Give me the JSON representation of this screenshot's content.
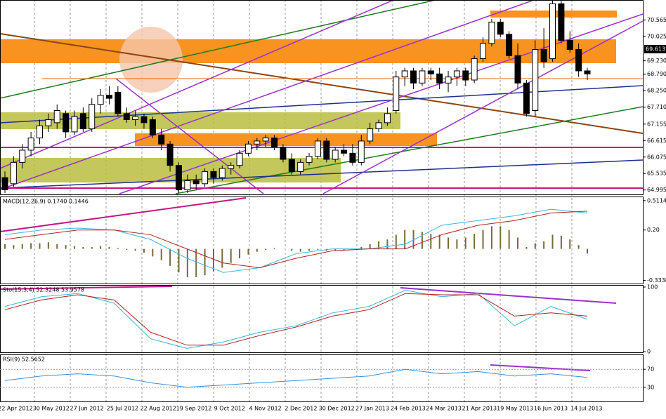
{
  "chart_data": [
    {
      "type": "candlestick",
      "last_price": {
        "value": 69.613,
        "label": "69.613"
      },
      "ylim": [
        64.85,
        71.2
      ],
      "yticks": [
        70.565,
        70.025,
        {
          "value": 69.23,
          "label": "69.230"
        },
        {
          "value": 68.79,
          "label": "68.790"
        },
        {
          "value": 68.25,
          "label": "68.250"
        },
        {
          "value": 67.71,
          "label": "67.710"
        },
        67.155,
        66.615,
        66.075,
        65.535,
        64.995
      ],
      "colors": {
        "up": "#ffffff",
        "down": "#000000"
      },
      "ohlc": [
        [
          65.4,
          65.6,
          64.9,
          65.0
        ],
        [
          65.2,
          66.1,
          65.1,
          65.9
        ],
        [
          65.9,
          66.5,
          65.7,
          66.3
        ],
        [
          66.3,
          66.9,
          66.1,
          66.7
        ],
        [
          66.7,
          67.3,
          66.5,
          67.1
        ],
        [
          67.1,
          67.5,
          66.9,
          67.3
        ],
        [
          67.2,
          67.8,
          67.0,
          67.6
        ],
        [
          67.5,
          67.6,
          66.7,
          66.9
        ],
        [
          66.9,
          67.6,
          66.8,
          67.4
        ],
        [
          67.5,
          67.7,
          66.9,
          67.0
        ],
        [
          67.0,
          68.0,
          66.9,
          67.8
        ],
        [
          67.8,
          68.3,
          67.5,
          68.1
        ],
        [
          68.1,
          68.4,
          67.8,
          68.0
        ],
        [
          68.2,
          68.4,
          67.4,
          67.5
        ],
        [
          67.5,
          67.7,
          67.2,
          67.3
        ],
        [
          67.3,
          67.6,
          67.1,
          67.4
        ],
        [
          67.4,
          67.5,
          67.0,
          67.2
        ],
        [
          67.3,
          67.4,
          66.7,
          66.8
        ],
        [
          66.8,
          67.0,
          66.3,
          66.5
        ],
        [
          66.5,
          66.6,
          65.6,
          65.8
        ],
        [
          65.8,
          65.9,
          64.9,
          65.0
        ],
        [
          65.0,
          65.5,
          64.9,
          65.3
        ],
        [
          65.3,
          65.5,
          65.0,
          65.2
        ],
        [
          65.2,
          65.7,
          65.1,
          65.6
        ],
        [
          65.6,
          65.7,
          65.2,
          65.4
        ],
        [
          65.4,
          65.8,
          65.3,
          65.7
        ],
        [
          65.7,
          65.9,
          65.5,
          65.8
        ],
        [
          65.8,
          66.3,
          65.7,
          66.2
        ],
        [
          66.2,
          66.6,
          66.1,
          66.5
        ],
        [
          66.5,
          66.7,
          66.3,
          66.6
        ],
        [
          66.6,
          66.8,
          66.4,
          66.7
        ],
        [
          66.7,
          66.8,
          66.3,
          66.4
        ],
        [
          66.4,
          66.5,
          65.9,
          66.0
        ],
        [
          66.0,
          66.2,
          65.5,
          65.6
        ],
        [
          65.6,
          66.0,
          65.5,
          65.9
        ],
        [
          65.9,
          66.2,
          65.8,
          66.1
        ],
        [
          66.1,
          66.7,
          66.0,
          66.6
        ],
        [
          66.6,
          66.7,
          65.9,
          66.0
        ],
        [
          66.0,
          66.4,
          65.9,
          66.3
        ],
        [
          66.3,
          66.5,
          66.1,
          66.2
        ],
        [
          66.2,
          66.5,
          65.8,
          65.9
        ],
        [
          65.9,
          66.8,
          65.8,
          66.6
        ],
        [
          66.6,
          67.2,
          66.5,
          67.0
        ],
        [
          67.0,
          67.3,
          66.9,
          67.2
        ],
        [
          67.2,
          67.7,
          67.1,
          67.5
        ],
        [
          67.6,
          68.9,
          67.5,
          68.7
        ],
        [
          68.7,
          69.0,
          68.4,
          68.9
        ],
        [
          68.9,
          69.0,
          68.3,
          68.5
        ],
        [
          68.5,
          69.0,
          68.4,
          68.9
        ],
        [
          68.9,
          69.0,
          68.6,
          68.8
        ],
        [
          68.8,
          69.0,
          68.3,
          68.5
        ],
        [
          68.5,
          68.9,
          68.2,
          68.7
        ],
        [
          68.7,
          69.0,
          68.4,
          68.9
        ],
        [
          68.9,
          69.0,
          68.4,
          68.6
        ],
        [
          68.6,
          69.4,
          68.5,
          69.3
        ],
        [
          69.3,
          70.0,
          69.2,
          69.8
        ],
        [
          69.8,
          70.6,
          69.7,
          70.5
        ],
        [
          70.5,
          70.6,
          70.0,
          70.1
        ],
        [
          70.1,
          70.2,
          69.3,
          69.4
        ],
        [
          69.4,
          69.8,
          68.3,
          68.5
        ],
        [
          68.5,
          68.6,
          67.4,
          67.5
        ],
        [
          67.6,
          69.9,
          67.4,
          69.6
        ],
        [
          69.6,
          70.3,
          69.0,
          69.2
        ],
        [
          69.3,
          71.2,
          69.2,
          71.1
        ],
        [
          71.1,
          71.2,
          69.8,
          69.9
        ],
        [
          69.9,
          70.2,
          69.5,
          69.6
        ],
        [
          69.6,
          69.8,
          68.7,
          68.9
        ],
        [
          68.9,
          69.0,
          68.6,
          68.8
        ]
      ],
      "x_labels": [
        "22 Apr 2012",
        "30 May 2012",
        "27 Jun 2012",
        "25 Jul 2012",
        "22 Aug 2012",
        "19 Sep 2012",
        "9 Oct 2012",
        "4 Nov 2012",
        "2 Dec 2012",
        "30 Dec 2012",
        "27 Jan 2013",
        "24 Feb 2013",
        "24 Mar 2013",
        "21 Apr 2013",
        "19 May 2013",
        "16 Jun 2013",
        "14 Jul 2013"
      ]
    },
    {
      "type": "macd",
      "label": "MACD(12,26,9) 0.1740 0.1446",
      "ylim": [
        -0.36,
        0.54
      ],
      "yticks": [
        0.5114,
        {
          "value": 0.2,
          "label": "0.20"
        },
        -0.3338
      ],
      "histogram": {
        "color": "#7a6a3a",
        "values": [
          0.05,
          0.04,
          0.05,
          0.06,
          0.06,
          0.07,
          0.05,
          0.04,
          0.03,
          0.02,
          0.02,
          0.03,
          0.02,
          0.01,
          -0.01,
          -0.02,
          -0.04,
          -0.08,
          -0.12,
          -0.18,
          -0.25,
          -0.3,
          -0.3,
          -0.28,
          -0.24,
          -0.2,
          -0.15,
          -0.1,
          -0.06,
          -0.03,
          -0.01,
          0.01,
          0.0,
          -0.02,
          -0.03,
          -0.02,
          -0.01,
          -0.02,
          -0.02,
          -0.01,
          0.0,
          0.02,
          0.05,
          0.08,
          0.1,
          0.15,
          0.2,
          0.2,
          0.18,
          0.16,
          0.15,
          0.12,
          0.1,
          0.12,
          0.16,
          0.2,
          0.24,
          0.24,
          0.2,
          0.12,
          0.02,
          0.06,
          0.08,
          0.15,
          0.14,
          0.1,
          0.04,
          -0.05
        ]
      },
      "series": [
        {
          "color": "#3bb6d8",
          "values": [
            0.15,
            0.2,
            0.22,
            0.2,
            0.1,
            -0.1,
            -0.25,
            -0.2,
            -0.05,
            0.0,
            0.0,
            0.05,
            0.25,
            0.3,
            0.35,
            0.42,
            0.38
          ]
        },
        {
          "color": "#b22222",
          "values": [
            0.1,
            0.15,
            0.2,
            0.2,
            0.15,
            0.0,
            -0.15,
            -0.2,
            -0.1,
            -0.02,
            0.0,
            0.0,
            0.15,
            0.25,
            0.3,
            0.38,
            0.4
          ]
        }
      ]
    },
    {
      "type": "stochastic",
      "label": "Sto(15,3,4) 52.3248 53.9578",
      "ylim": [
        0,
        100
      ],
      "yticks": [
        100,
        0
      ],
      "series": [
        {
          "color": "#3bb6d8",
          "values": [
            70,
            85,
            90,
            75,
            20,
            5,
            15,
            30,
            40,
            60,
            70,
            95,
            85,
            90,
            40,
            70,
            50
          ]
        },
        {
          "color": "#b22222",
          "values": [
            65,
            80,
            88,
            80,
            30,
            10,
            10,
            25,
            38,
            55,
            65,
            90,
            88,
            88,
            55,
            60,
            55
          ]
        }
      ]
    },
    {
      "type": "rsi",
      "label": "RSI(9) 52.5652",
      "ylim": [
        0,
        100
      ],
      "yticks": [
        70,
        30
      ],
      "series": [
        {
          "color": "#3b8fd8",
          "values": [
            45,
            55,
            60,
            55,
            40,
            30,
            35,
            40,
            45,
            50,
            55,
            70,
            60,
            65,
            55,
            60,
            52
          ]
        }
      ]
    }
  ]
}
